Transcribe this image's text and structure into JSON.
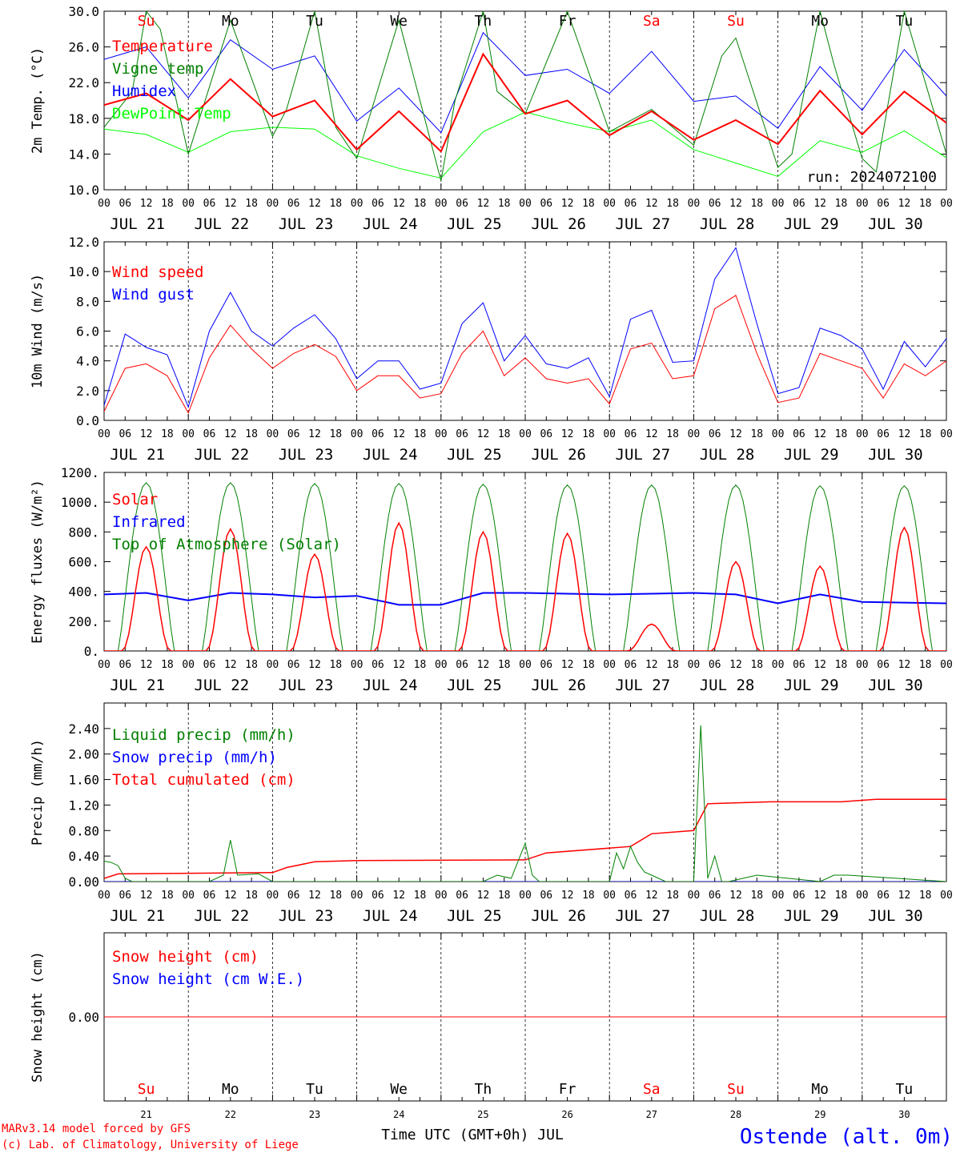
{
  "run_label": "run: 2024072100",
  "xaxis": {
    "title": "Time UTC (GMT+0h) JUL",
    "hour_ticks": [
      "00",
      "06",
      "12",
      "18"
    ],
    "days": [
      "JUL 21",
      "JUL 22",
      "JUL 23",
      "JUL 24",
      "JUL 25",
      "JUL 26",
      "JUL 27",
      "JUL 28",
      "JUL 29",
      "JUL 30"
    ],
    "day_numbers": [
      "21",
      "22",
      "23",
      "24",
      "25",
      "26",
      "27",
      "28",
      "29",
      "30"
    ],
    "weekdays": [
      "Su",
      "Mo",
      "Tu",
      "We",
      "Th",
      "Fr",
      "Sa",
      "Su",
      "Mo",
      "Tu"
    ],
    "weekend_color": "#ff0000"
  },
  "footer": {
    "model": "MARv3.14 model forced by GFS",
    "credit": "(c) Lab. of Climatology, University of Liege",
    "station": "Ostende (alt. 0m)"
  },
  "chart_data": [
    {
      "type": "line",
      "ylabel": "2m Temp. (°C)",
      "ylim": [
        10,
        30
      ],
      "yticks": [
        "10.0",
        "14.0",
        "18.0",
        "22.0",
        "26.0",
        "30.0"
      ],
      "ytick_values": [
        10,
        14,
        18,
        22,
        26,
        30
      ],
      "series": [
        {
          "name": "Temperature",
          "color": "#ff0000",
          "width": 2,
          "x": [
            0,
            12,
            24,
            36,
            48,
            60,
            72,
            84,
            96,
            108,
            120,
            132,
            144,
            156,
            168,
            180,
            192,
            204,
            216,
            228,
            240
          ],
          "values": [
            19.5,
            20.8,
            17.8,
            22.4,
            18.2,
            20.0,
            14.5,
            18.8,
            14.3,
            25.2,
            18.5,
            20.0,
            16.1,
            18.8,
            15.6,
            17.8,
            15.1,
            21.1,
            16.2,
            21.0,
            17.5
          ]
        },
        {
          "name": "Vigne temp",
          "color": "#008000",
          "width": 1,
          "x": [
            0,
            8,
            12,
            16,
            24,
            36,
            48,
            52,
            60,
            66,
            72,
            84,
            96,
            100,
            108,
            112,
            120,
            132,
            144,
            156,
            168,
            176,
            180,
            192,
            196,
            204,
            208,
            216,
            220,
            228,
            240
          ],
          "values": [
            17.0,
            21.0,
            30.0,
            28.0,
            14.0,
            29.0,
            16.0,
            19.0,
            30.0,
            17.0,
            13.5,
            29.0,
            11.0,
            20.0,
            30.0,
            21.0,
            18.5,
            30.0,
            16.5,
            19.0,
            15.0,
            25.0,
            27.0,
            12.5,
            14.0,
            30.0,
            24.0,
            13.5,
            12.0,
            30.0,
            14.0
          ]
        },
        {
          "name": "Humidex",
          "color": "#0000ff",
          "width": 1,
          "x": [
            0,
            12,
            24,
            36,
            48,
            60,
            72,
            84,
            96,
            108,
            120,
            132,
            144,
            156,
            168,
            180,
            192,
            204,
            216,
            228,
            240
          ],
          "values": [
            24.6,
            26.0,
            20.3,
            26.8,
            23.5,
            25.0,
            17.7,
            21.4,
            16.4,
            27.6,
            22.8,
            23.5,
            20.8,
            25.5,
            19.9,
            20.5,
            16.9,
            23.8,
            18.9,
            25.7,
            20.5
          ]
        },
        {
          "name": "DewPoint Temp",
          "color": "#00ff00",
          "width": 1,
          "x": [
            0,
            12,
            24,
            36,
            48,
            60,
            72,
            84,
            96,
            108,
            120,
            132,
            144,
            156,
            168,
            180,
            192,
            204,
            216,
            228,
            240
          ],
          "values": [
            16.8,
            16.2,
            14.2,
            16.5,
            17.0,
            16.8,
            13.8,
            12.4,
            11.3,
            16.5,
            18.7,
            17.5,
            16.5,
            17.8,
            14.5,
            13.0,
            11.5,
            15.5,
            14.2,
            16.6,
            13.6
          ]
        }
      ]
    },
    {
      "type": "line",
      "ylabel": "10m Wind (m/s)",
      "ylim": [
        0,
        12
      ],
      "yticks": [
        "0.0",
        "2.0",
        "4.0",
        "6.0",
        "8.0",
        "10.0",
        "12.0"
      ],
      "ytick_values": [
        0,
        2,
        4,
        6,
        8,
        10,
        12
      ],
      "reference_line": 5.0,
      "series": [
        {
          "name": "Wind speed",
          "color": "#ff0000",
          "width": 1,
          "x": [
            0,
            6,
            12,
            18,
            24,
            30,
            36,
            42,
            48,
            54,
            60,
            66,
            72,
            78,
            84,
            90,
            96,
            102,
            108,
            114,
            120,
            126,
            132,
            138,
            144,
            150,
            156,
            162,
            168,
            174,
            180,
            186,
            192,
            198,
            204,
            210,
            216,
            222,
            228,
            234,
            240
          ],
          "values": [
            0.6,
            3.5,
            3.8,
            3.0,
            0.5,
            4.2,
            6.4,
            4.8,
            3.5,
            4.5,
            5.1,
            4.3,
            2.0,
            3.0,
            3.0,
            1.5,
            1.8,
            4.5,
            6.0,
            3.0,
            4.2,
            2.8,
            2.5,
            2.8,
            1.1,
            4.8,
            5.2,
            2.8,
            3.0,
            7.5,
            8.4,
            4.5,
            1.2,
            1.5,
            4.5,
            4.0,
            3.5,
            1.5,
            3.8,
            3.0,
            4.0
          ]
        },
        {
          "name": "Wind gust",
          "color": "#0000ff",
          "width": 1,
          "x": [
            0,
            6,
            12,
            18,
            24,
            30,
            36,
            42,
            48,
            54,
            60,
            66,
            72,
            78,
            84,
            90,
            96,
            102,
            108,
            114,
            120,
            126,
            132,
            138,
            144,
            150,
            156,
            162,
            168,
            174,
            180,
            186,
            192,
            198,
            204,
            210,
            216,
            222,
            228,
            234,
            240
          ],
          "values": [
            1.0,
            5.8,
            4.9,
            4.4,
            0.9,
            6.0,
            8.6,
            6.0,
            5.0,
            6.2,
            7.1,
            5.5,
            2.8,
            4.0,
            4.0,
            2.1,
            2.5,
            6.5,
            7.9,
            4.0,
            5.7,
            3.8,
            3.5,
            4.2,
            1.6,
            6.8,
            7.4,
            3.9,
            4.0,
            9.5,
            11.6,
            6.5,
            1.8,
            2.2,
            6.2,
            5.7,
            4.8,
            2.1,
            5.3,
            3.6,
            5.5
          ]
        }
      ]
    },
    {
      "type": "line",
      "ylabel": "Energy fluxes (W/m²)",
      "ylim": [
        0,
        1200
      ],
      "yticks": [
        "0.",
        "200.",
        "400.",
        "600.",
        "800.",
        "1000.",
        "1200."
      ],
      "ytick_values": [
        0,
        200,
        400,
        600,
        800,
        1000,
        1200
      ],
      "series": [
        {
          "name": "Solar",
          "color": "#ff0000",
          "width": 1.5,
          "daily_peaks": [
            700,
            820,
            650,
            860,
            800,
            790,
            180,
            600,
            570,
            830
          ]
        },
        {
          "name": "Infrared",
          "color": "#0000ff",
          "width": 2,
          "x": [
            0,
            12,
            24,
            36,
            48,
            60,
            72,
            84,
            96,
            108,
            120,
            132,
            144,
            156,
            168,
            180,
            192,
            204,
            216,
            228,
            240
          ],
          "values": [
            380,
            390,
            340,
            390,
            380,
            360,
            370,
            310,
            310,
            390,
            390,
            385,
            380,
            385,
            390,
            380,
            320,
            380,
            330,
            325,
            320
          ]
        },
        {
          "name": "Top of Atmosphere (Solar)",
          "color": "#008000",
          "width": 1,
          "daily_peaks": [
            1130,
            1130,
            1125,
            1125,
            1120,
            1115,
            1115,
            1115,
            1110,
            1110
          ]
        }
      ]
    },
    {
      "type": "line",
      "ylabel": "Precip (mm/h)",
      "ylim": [
        0,
        2.8
      ],
      "yticks": [
        "0.00",
        "0.40",
        "0.80",
        "1.20",
        "1.60",
        "2.00",
        "2.40"
      ],
      "ytick_values": [
        0,
        0.4,
        0.8,
        1.2,
        1.6,
        2.0,
        2.4
      ],
      "series": [
        {
          "name": "Liquid precip (mm/h)",
          "color": "#008000",
          "width": 1,
          "x": [
            0,
            2,
            4,
            6,
            8,
            10,
            30,
            34,
            36,
            38,
            44,
            48,
            96,
            108,
            112,
            116,
            120,
            122,
            124,
            144,
            146,
            148,
            150,
            152,
            154,
            156,
            160,
            168,
            170,
            172,
            174,
            176,
            178,
            186,
            204,
            208,
            212,
            240
          ],
          "values": [
            0.32,
            0.3,
            0.25,
            0.05,
            0,
            0,
            0,
            0.1,
            0.65,
            0.1,
            0.12,
            0,
            0,
            0,
            0.1,
            0.05,
            0.6,
            0.1,
            0,
            0,
            0.45,
            0.2,
            0.55,
            0.3,
            0.15,
            0.1,
            0,
            0,
            2.45,
            0.05,
            0.4,
            0,
            0,
            0.1,
            0,
            0.1,
            0.1,
            0
          ]
        },
        {
          "name": "Snow precip (mm/h)",
          "color": "#0000ff",
          "width": 1,
          "x": [
            0,
            240
          ],
          "values": [
            0,
            0
          ]
        },
        {
          "name": "Total cumulated (cm)",
          "color": "#ff0000",
          "width": 1.5,
          "x": [
            0,
            4,
            48,
            52,
            60,
            72,
            120,
            126,
            150,
            156,
            168,
            172,
            190,
            210,
            220,
            240
          ],
          "values": [
            0.05,
            0.12,
            0.14,
            0.22,
            0.31,
            0.33,
            0.34,
            0.45,
            0.55,
            0.75,
            0.8,
            1.22,
            1.25,
            1.25,
            1.29,
            1.29
          ]
        }
      ]
    },
    {
      "type": "line",
      "ylabel": "Snow height (cm)",
      "ylim": [
        -1,
        1
      ],
      "yticks": [
        "0.00"
      ],
      "ytick_values": [
        0
      ],
      "series": [
        {
          "name": "Snow height (cm)",
          "color": "#ff0000",
          "width": 1,
          "x": [
            0,
            240
          ],
          "values": [
            0,
            0
          ]
        },
        {
          "name": "Snow height (cm W.E.)",
          "color": "#0000ff",
          "width": 1,
          "x": [
            0,
            240
          ],
          "values": [
            0,
            0
          ]
        }
      ]
    }
  ]
}
